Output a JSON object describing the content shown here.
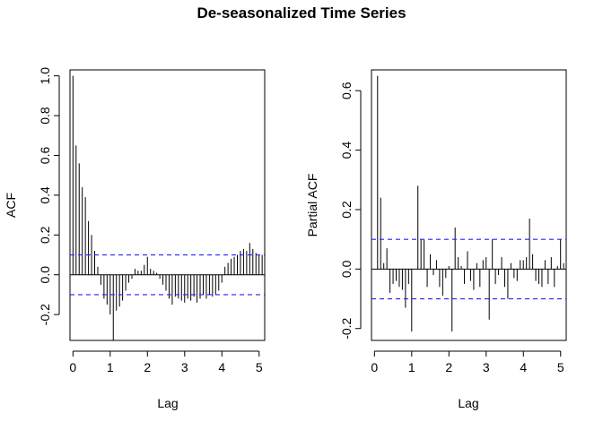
{
  "figure": {
    "title": "De-seasonalized Time Series"
  },
  "chart_data": [
    {
      "type": "bar",
      "xlabel": "Lag",
      "ylabel": "ACF",
      "xlim": [
        -0.08,
        5.15
      ],
      "ylim": [
        -0.33,
        1.03
      ],
      "xticks": [
        "0",
        "1",
        "2",
        "3",
        "4",
        "5"
      ],
      "yticks": [
        "-0.2",
        "0.0",
        "0.2",
        "0.4",
        "0.6",
        "0.8",
        "1.0"
      ],
      "ci_bound": 0.1,
      "colors": {
        "bars": "#000000",
        "ci": "#2222ff",
        "zero": "#000000"
      },
      "lag_step": 0.0833,
      "values": [
        1.0,
        0.65,
        0.56,
        0.44,
        0.39,
        0.27,
        0.2,
        0.12,
        0.04,
        -0.05,
        -0.12,
        -0.15,
        -0.2,
        -0.33,
        -0.18,
        -0.16,
        -0.13,
        -0.08,
        -0.04,
        -0.02,
        0.03,
        0.02,
        0.02,
        0.05,
        0.09,
        0.03,
        0.02,
        0.01,
        -0.02,
        -0.05,
        -0.08,
        -0.12,
        -0.15,
        -0.11,
        -0.12,
        -0.13,
        -0.14,
        -0.12,
        -0.13,
        -0.11,
        -0.14,
        -0.12,
        -0.1,
        -0.12,
        -0.1,
        -0.11,
        -0.1,
        -0.08,
        -0.04,
        0.04,
        0.06,
        0.08,
        0.09,
        0.1,
        0.12,
        0.13,
        0.12,
        0.16,
        0.13,
        0.11,
        0.1,
        0.1
      ]
    },
    {
      "type": "bar",
      "xlabel": "Lag",
      "ylabel": "Partial ACF",
      "xlim": [
        -0.08,
        5.15
      ],
      "ylim": [
        -0.24,
        0.67
      ],
      "xticks": [
        "0",
        "1",
        "2",
        "3",
        "4",
        "5"
      ],
      "yticks": [
        "-0.2",
        "0.0",
        "0.2",
        "0.4",
        "0.6"
      ],
      "ci_bound": 0.1,
      "colors": {
        "bars": "#000000",
        "ci": "#2222ff",
        "zero": "#000000"
      },
      "lag_step": 0.0833,
      "values": [
        0.65,
        0.24,
        0.02,
        0.07,
        -0.08,
        -0.05,
        -0.04,
        -0.06,
        -0.07,
        -0.13,
        -0.05,
        -0.21,
        0.0,
        0.28,
        0.1,
        0.1,
        -0.06,
        0.05,
        -0.02,
        0.03,
        -0.06,
        -0.09,
        -0.03,
        0.01,
        -0.21,
        0.14,
        0.04,
        0.01,
        -0.05,
        0.06,
        -0.04,
        -0.07,
        0.02,
        -0.06,
        0.03,
        0.04,
        -0.17,
        0.1,
        -0.05,
        -0.02,
        0.04,
        -0.06,
        -0.1,
        0.02,
        -0.03,
        -0.04,
        0.03,
        0.03,
        0.04,
        0.17,
        0.05,
        -0.04,
        -0.05,
        -0.06,
        0.03,
        -0.05,
        0.04,
        -0.06,
        0.01,
        0.1,
        0.02
      ]
    }
  ]
}
